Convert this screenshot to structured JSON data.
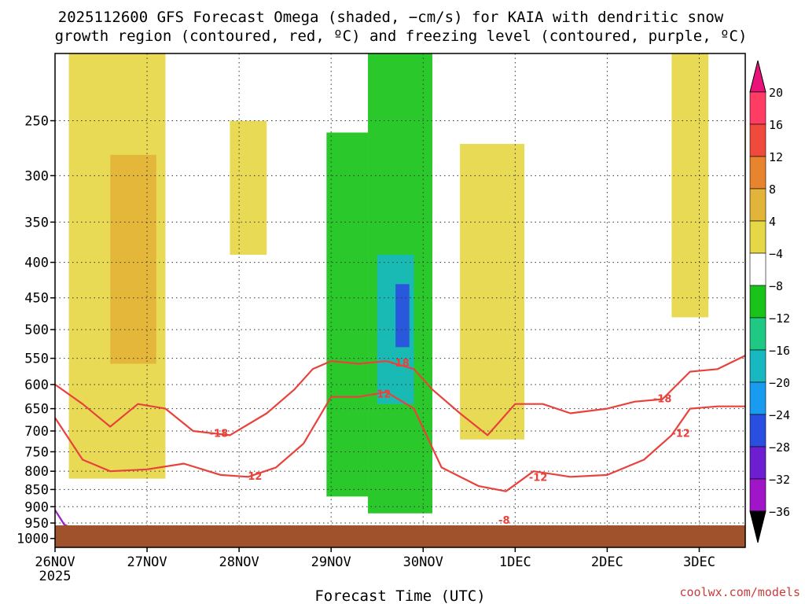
{
  "title_line1": "2025112600 GFS Forecast Omega (shaded, −cm/s) for KAIA with dendritic snow",
  "title_line2": "growth region (contoured, red, ºC) and freezing level (contoured, purple, ºC)",
  "credit": "coolwx.com/models",
  "colors": {
    "ground": "#a0522d",
    "snow_contour": "#e8423c",
    "freezing_contour": "#9a1fc8",
    "grid": "#333333"
  },
  "chart_data": {
    "type": "heatmap",
    "xlabel": "Forecast Time (UTC)",
    "ylabel": "",
    "x_ticks": [
      "26NOV",
      "27NOV",
      "28NOV",
      "29NOV",
      "30NOV",
      "1DEC",
      "2DEC",
      "3DEC"
    ],
    "x_tick_sub": "2025",
    "x_range_days": [
      0,
      7.5
    ],
    "y_ticks": [
      250,
      300,
      350,
      400,
      450,
      500,
      550,
      600,
      650,
      700,
      750,
      800,
      850,
      900,
      950,
      1000
    ],
    "y_range_hpa": [
      200,
      1030
    ],
    "y_scale": "log",
    "grid": true,
    "colorbar": {
      "labels": [
        "20",
        "16",
        "12",
        "8",
        "4",
        "−4",
        "−8",
        "−12",
        "−16",
        "−20",
        "−24",
        "−28",
        "−32",
        "−36"
      ],
      "colors": [
        "#ff3c64",
        "#f04a3c",
        "#e8842e",
        "#e3b43a",
        "#e6d747",
        "#ffffff",
        "#19c319",
        "#1fc983",
        "#19b8c0",
        "#199bf0",
        "#2a4fe0",
        "#6b1fd0",
        "#a015c8",
        "#a0a0a0"
      ]
    },
    "omega_regions": [
      {
        "value": 6,
        "day_range": [
          0.15,
          1.2
        ],
        "hpa_range": [
          200,
          820
        ]
      },
      {
        "value": 10,
        "day_range": [
          0.6,
          1.1
        ],
        "hpa_range": [
          280,
          560
        ]
      },
      {
        "value": 6,
        "day_range": [
          1.9,
          2.3
        ],
        "hpa_range": [
          250,
          390
        ]
      },
      {
        "value": -6,
        "day_range": [
          2.95,
          3.4
        ],
        "hpa_range": [
          260,
          870
        ]
      },
      {
        "value": -7,
        "day_range": [
          3.4,
          4.1
        ],
        "hpa_range": [
          200,
          920
        ]
      },
      {
        "value": -14,
        "day_range": [
          3.5,
          3.9
        ],
        "hpa_range": [
          390,
          640
        ]
      },
      {
        "value": -20,
        "day_range": [
          3.7,
          3.85
        ],
        "hpa_range": [
          430,
          530
        ]
      },
      {
        "value": 6,
        "day_range": [
          4.4,
          5.1
        ],
        "hpa_range": [
          270,
          720
        ]
      },
      {
        "value": 6,
        "day_range": [
          6.7,
          7.1
        ],
        "hpa_range": [
          200,
          480
        ]
      }
    ],
    "series": [
      {
        "name": "-18",
        "points": [
          [
            0,
            600
          ],
          [
            0.3,
            640
          ],
          [
            0.6,
            690
          ],
          [
            0.9,
            640
          ],
          [
            1.2,
            650
          ],
          [
            1.5,
            700
          ],
          [
            1.9,
            710
          ],
          [
            2.3,
            660
          ],
          [
            2.6,
            610
          ],
          [
            2.8,
            570
          ],
          [
            3.0,
            555
          ],
          [
            3.3,
            560
          ],
          [
            3.6,
            555
          ],
          [
            3.9,
            570
          ],
          [
            4.1,
            610
          ],
          [
            4.4,
            660
          ],
          [
            4.7,
            710
          ],
          [
            5.0,
            640
          ],
          [
            5.3,
            640
          ],
          [
            5.6,
            660
          ],
          [
            6.0,
            650
          ],
          [
            6.3,
            635
          ],
          [
            6.6,
            630
          ],
          [
            6.9,
            575
          ],
          [
            7.2,
            570
          ],
          [
            7.5,
            545
          ]
        ]
      },
      {
        "name": "-12",
        "points": [
          [
            0,
            670
          ],
          [
            0.3,
            770
          ],
          [
            0.6,
            800
          ],
          [
            1.0,
            795
          ],
          [
            1.4,
            780
          ],
          [
            1.8,
            810
          ],
          [
            2.1,
            815
          ],
          [
            2.4,
            790
          ],
          [
            2.7,
            730
          ],
          [
            3.0,
            625
          ],
          [
            3.3,
            625
          ],
          [
            3.6,
            615
          ],
          [
            3.9,
            650
          ],
          [
            4.2,
            790
          ],
          [
            4.6,
            840
          ],
          [
            4.9,
            855
          ],
          [
            5.2,
            800
          ],
          [
            5.6,
            815
          ],
          [
            6.0,
            810
          ],
          [
            6.4,
            770
          ],
          [
            6.7,
            710
          ],
          [
            6.9,
            650
          ],
          [
            7.2,
            645
          ],
          [
            7.5,
            645
          ]
        ]
      },
      {
        "name": "freezing",
        "points": [
          [
            0,
            910
          ],
          [
            0.1,
            955
          ],
          [
            0.25,
            975
          ],
          [
            0.7,
            985
          ],
          [
            0.8,
            965
          ],
          [
            0.95,
            970
          ]
        ]
      }
    ],
    "contour_labels": [
      {
        "text": "-18",
        "day": 1.78,
        "hpa": 705
      },
      {
        "text": "-18",
        "day": 3.75,
        "hpa": 558
      },
      {
        "text": "-18",
        "day": 6.6,
        "hpa": 628
      },
      {
        "text": "-12",
        "day": 2.15,
        "hpa": 812
      },
      {
        "text": "-12",
        "day": 3.55,
        "hpa": 618
      },
      {
        "text": "-12",
        "day": 5.25,
        "hpa": 815
      },
      {
        "text": "-12",
        "day": 6.8,
        "hpa": 705
      },
      {
        "text": "-8",
        "day": 4.88,
        "hpa": 940
      }
    ]
  }
}
